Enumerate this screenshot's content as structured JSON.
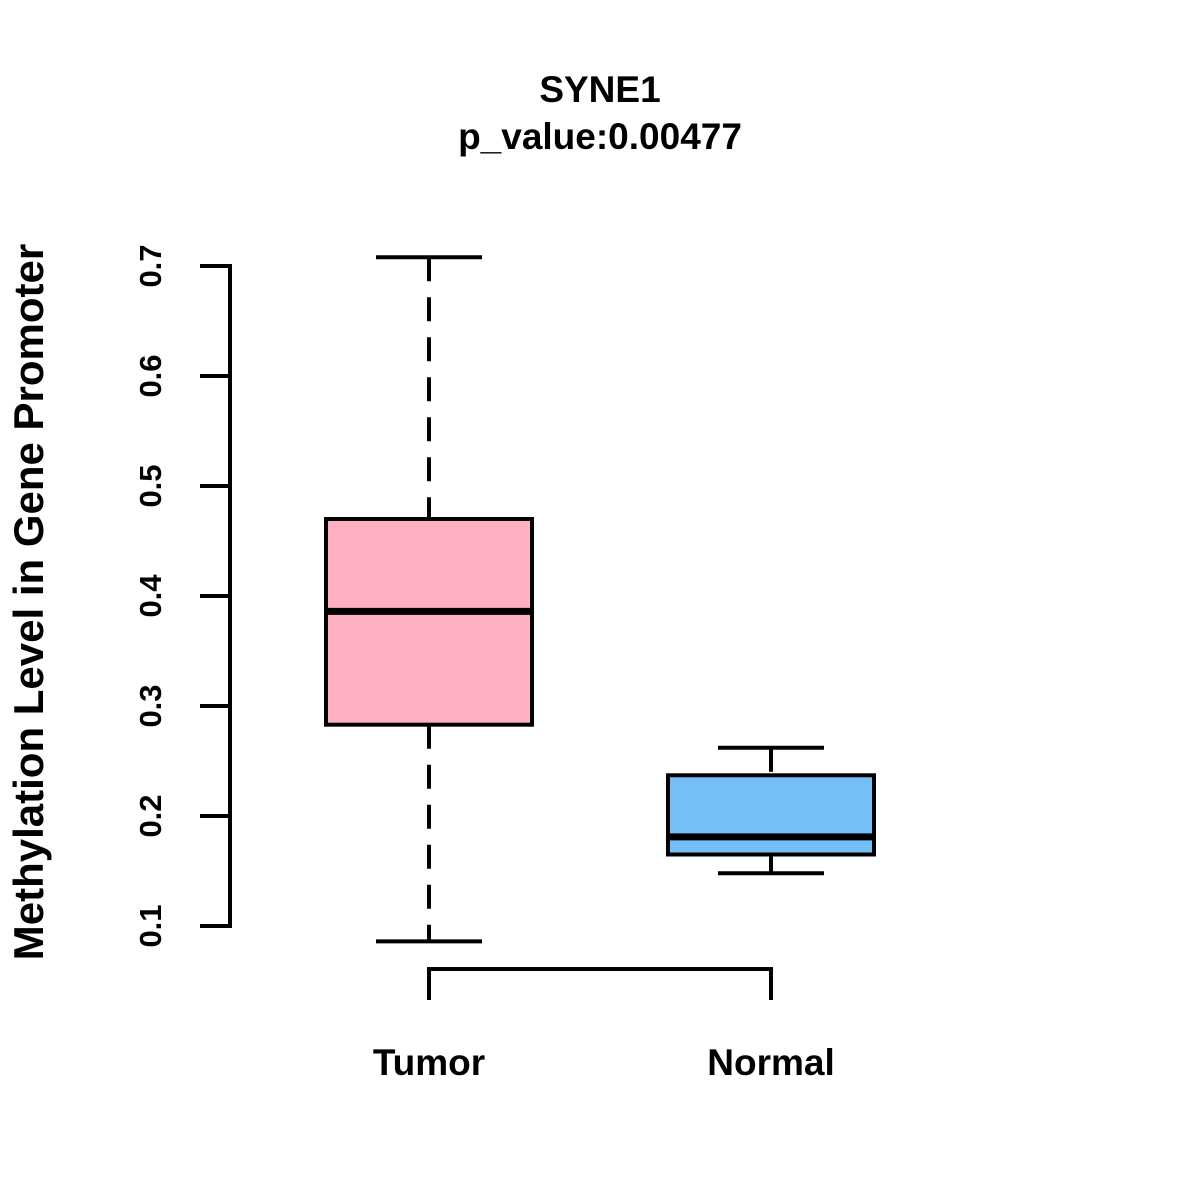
{
  "title": "SYNE1",
  "subtitle": "p_value:0.00477",
  "chart_data": {
    "type": "boxplot",
    "title": "SYNE1",
    "subtitle": "p_value:0.00477",
    "p_value": 0.00477,
    "ylabel": "Methylation Level in Gene Promoter",
    "xlabel": "",
    "ylim": [
      0.1,
      0.7
    ],
    "yticks": [
      0.1,
      0.2,
      0.3,
      0.4,
      0.5,
      0.6,
      0.7
    ],
    "ytick_labels": [
      "0.1",
      "0.2",
      "0.3",
      "0.4",
      "0.5",
      "0.6",
      "0.7"
    ],
    "grid": false,
    "legend": "none",
    "background": "#ffffff",
    "axis_color": "#000000",
    "categories": [
      "Tumor",
      "Normal"
    ],
    "series": [
      {
        "name": "Tumor",
        "fill_color": "#FFB1C1",
        "border_color": "#000000",
        "whisker_low": 0.086,
        "q1": 0.283,
        "median": 0.386,
        "q3": 0.47,
        "whisker_high": 0.708
      },
      {
        "name": "Normal",
        "fill_color": "#74BFF7",
        "border_color": "#000000",
        "whisker_low": 0.148,
        "q1": 0.165,
        "median": 0.181,
        "q3": 0.237,
        "whisker_high": 0.262
      }
    ],
    "comparison_bracket": [
      "Tumor",
      "Normal"
    ]
  }
}
